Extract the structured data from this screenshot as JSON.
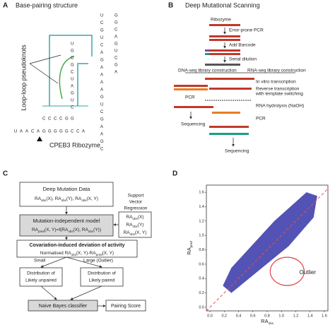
{
  "panel_a": {
    "label": "A",
    "title": "Base-pairing structure",
    "side_label": "Loop-loop pseudoknots",
    "caption": "CPEB3 Ribozyme",
    "bottom_strand": [
      "U",
      "A",
      "A",
      "C",
      "A",
      "G",
      "G",
      "G",
      "G",
      "G",
      "C",
      "C",
      "A"
    ],
    "top_strand": [
      "C",
      "C",
      "C",
      "C",
      "G",
      "G"
    ],
    "right_column": [
      "U",
      "C",
      "G",
      "U",
      "C",
      "A",
      "G",
      "A",
      "A",
      "A",
      "A",
      "G",
      "U",
      "C",
      "G",
      "A",
      "A",
      "G",
      "C"
    ],
    "hairpin": [
      "G",
      "G",
      "C",
      "A",
      "G",
      "U",
      "C",
      "G",
      "A"
    ],
    "inner_column": [
      "U",
      "G",
      "C",
      "G",
      "C",
      "U",
      "A",
      "G",
      "U",
      "C"
    ]
  },
  "panel_b": {
    "label": "B",
    "title": "Deep Mutational Scanning",
    "ribozyme": "Ribozyme",
    "step1": "Error-prone PCR",
    "step2": "Add Barcode",
    "step3": "Serial dilution",
    "dna_branch": "DNA-seq library construction",
    "rna_branch": "RNA-seq library construction",
    "dna_pcr": "PCR",
    "dna_seq": "Sequencing",
    "rna_ivt": "In vitro transcription",
    "rna_rt1": "Reverse transcription",
    "rna_rt2": "with template switching",
    "rna_hyd": "RNA hydrolysis (NaOH)",
    "rna_pcr": "PCR",
    "rna_seq": "Sequencing"
  },
  "panel_c": {
    "label": "C",
    "box1_title": "Deep Mutation Data",
    "box1_line": [
      "RA",
      "obs",
      "(X), RA",
      "obs",
      "(Y), RA",
      "obs",
      "(X, Y)"
    ],
    "box2_title": "Mutation-independent model",
    "box2_line": [
      "RA",
      "pred",
      "(X, Y)=f(RA",
      "obs",
      "(X), RA",
      "obs",
      "(Y))"
    ],
    "svr": [
      "Support",
      "Vector",
      "Regression"
    ],
    "inputs": [
      [
        "RA",
        "obs",
        "(X)"
      ],
      [
        "RA",
        "obs",
        "(Y)"
      ],
      [
        "RA",
        "obs",
        "(X, Y)"
      ]
    ],
    "box3_title": "Covariation-induced deviation of activity",
    "box3_line": [
      "Normalised RA",
      "obs",
      "(X, Y)-RA",
      "pred",
      "(X, Y)"
    ],
    "small": "Small",
    "large": "Large (Outlier)",
    "dist_unpaired": [
      "Distribution of",
      "Likely unpaired"
    ],
    "dist_paired": [
      "Distribution of",
      "Likely paired"
    ],
    "classifier": "Naive Bayes classifier",
    "score": "Pairing Score"
  },
  "chart_data": {
    "type": "scatter",
    "label": "D",
    "xlabel": [
      "RA",
      "obs"
    ],
    "ylabel": [
      "RA",
      "pred"
    ],
    "annotation": "Outlier",
    "xlim": [
      -0.05,
      1.65
    ],
    "ylim": [
      -0.05,
      1.7
    ],
    "xticks": [
      {
        "value": 0,
        "label": "0.0"
      },
      {
        "value": 0.2,
        "label": "0.2"
      },
      {
        "value": 0.4,
        "label": "0.4"
      },
      {
        "value": 0.6,
        "label": "0.6"
      },
      {
        "value": 0.8,
        "label": "0.8"
      },
      {
        "value": 1,
        "label": "1.0"
      },
      {
        "value": 1.2,
        "label": "1.2"
      },
      {
        "value": 1.4,
        "label": "1.4"
      },
      {
        "value": 1.6,
        "label": "1.6"
      }
    ],
    "yticks": [
      {
        "value": 0,
        "label": "0.0"
      },
      {
        "value": 0.2,
        "label": "0.2"
      },
      {
        "value": 0.4,
        "label": "0.4"
      },
      {
        "value": 0.6,
        "label": "0.6"
      },
      {
        "value": 0.8,
        "label": "0.8"
      },
      {
        "value": 1,
        "label": "1.0"
      },
      {
        "value": 1.2,
        "label": "1.2"
      },
      {
        "value": 1.4,
        "label": "1.4"
      },
      {
        "value": 1.6,
        "label": "1.6"
      }
    ],
    "color": "#1a1a9c",
    "diagonal_color": "#e05050"
  }
}
